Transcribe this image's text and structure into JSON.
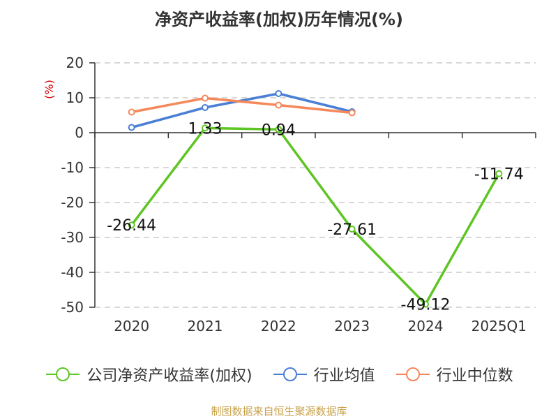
{
  "chart_data": {
    "type": "line",
    "title": "净资产收益率(加权)历年情况(%)",
    "ylabel": "(%)",
    "categories": [
      "2020",
      "2021",
      "2022",
      "2023",
      "2024",
      "2025Q1"
    ],
    "ylim": [
      -50,
      20
    ],
    "yticks": [
      "20",
      "10",
      "0",
      "-10",
      "-20",
      "-30",
      "-40",
      "-50"
    ],
    "grid": true,
    "legend_position": "bottom",
    "series": [
      {
        "name": "公司净资产收益率(加权)",
        "color": "#5ec524",
        "values": [
          -26.44,
          1.33,
          0.94,
          -27.61,
          -49.12,
          -11.74
        ],
        "labels": [
          "-26.44",
          "1.33",
          "0.94",
          "-27.61",
          "-49.12",
          "-11.74"
        ]
      },
      {
        "name": "行业均值",
        "color": "#4a7fd6",
        "values": [
          1.5,
          7.2,
          11.2,
          6.0,
          null,
          null
        ]
      },
      {
        "name": "行业中位数",
        "color": "#f5885a",
        "values": [
          5.9,
          9.9,
          7.9,
          5.7,
          null,
          null
        ]
      }
    ]
  },
  "footer": {
    "source": "制图数据来自恒生聚源数据库"
  }
}
